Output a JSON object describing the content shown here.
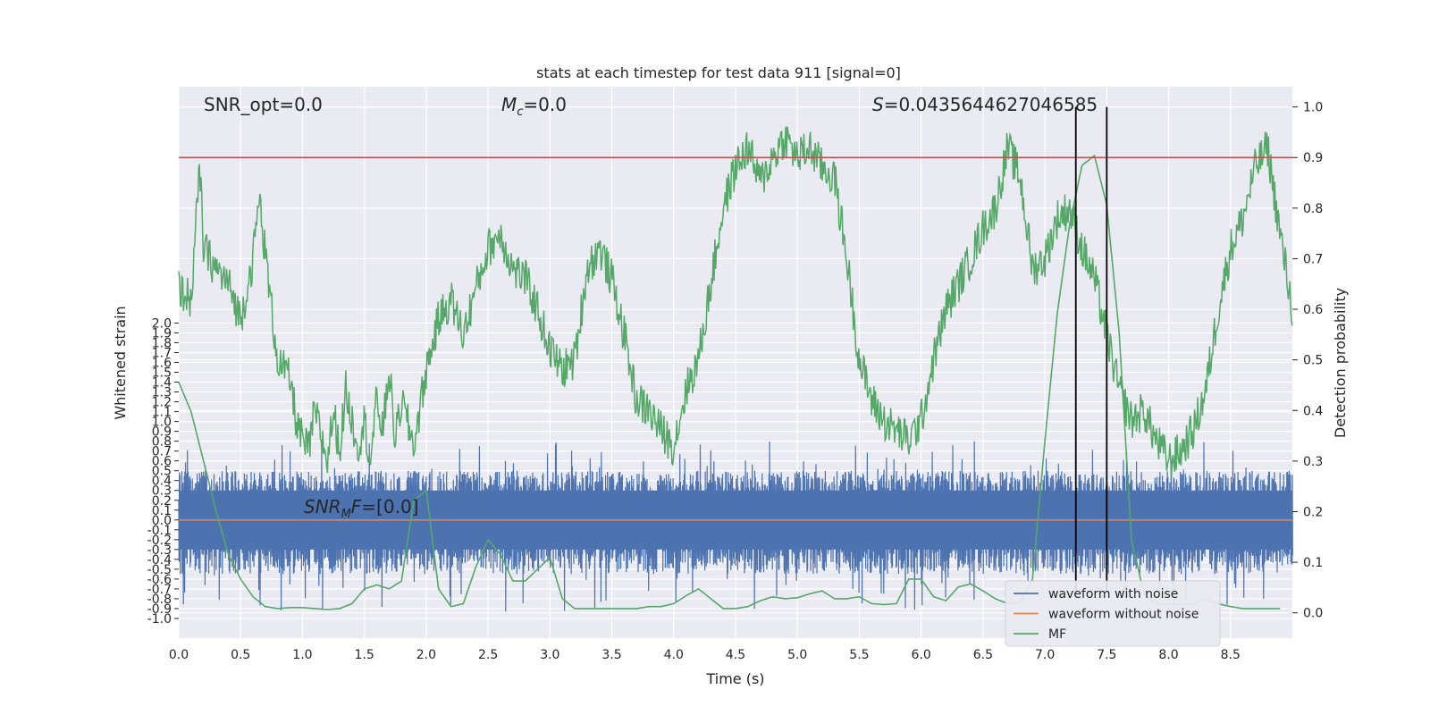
{
  "chart_data": {
    "type": "line",
    "title": "stats at each timestep for test data 911 [signal=0]",
    "xlabel": "Time (s)",
    "ylabel": "Whitened strain",
    "y2label": "Detection probability",
    "xlim": [
      0.0,
      9.0
    ],
    "ylim": [
      -1.2,
      4.4
    ],
    "y2lim": [
      -0.05,
      1.04
    ],
    "x_ticks": [
      "0.0",
      "0.5",
      "1.0",
      "1.5",
      "2.0",
      "2.5",
      "3.0",
      "3.5",
      "4.0",
      "4.5",
      "5.0",
      "5.5",
      "6.0",
      "6.5",
      "7.0",
      "7.5",
      "8.0",
      "8.5"
    ],
    "y_ticks": [
      "2.0",
      "1.9",
      "1.8",
      "1.7",
      "1.6",
      "1.5",
      "1.4",
      "1.3",
      "1.2",
      "1.1",
      "1.0",
      "0.9",
      "0.8",
      "0.7",
      "0.6",
      "0.5",
      "0.4",
      "0.3",
      "0.2",
      "0.1",
      "0.0",
      "-0.1",
      "-0.2",
      "-0.3",
      "-0.4",
      "-0.5",
      "-0.6",
      "-0.7",
      "-0.8",
      "-0.9",
      "-1.0"
    ],
    "y2_ticks": [
      "0.0",
      "0.1",
      "0.2",
      "0.3",
      "0.4",
      "0.5",
      "0.6",
      "0.7",
      "0.8",
      "0.9",
      "1.0"
    ],
    "grid": true,
    "legend_position": "lower-right",
    "annotations": {
      "snr_opt": "SNR_opt=0.0",
      "mc": "=0.0",
      "s_value": "=0.0435644627046585",
      "snr_mf": "=[0.0]"
    },
    "threshold": 0.9,
    "vlines": [
      7.25,
      7.5
    ],
    "colors": {
      "noise": "#4c72b0",
      "clean": "#dd8452",
      "mf": "#55a868",
      "prob": "#55a868",
      "threshold": "#c44e52",
      "vline": "#000000",
      "axes_bg": "#eaeaf2"
    },
    "series": [
      {
        "name": "waveform with noise",
        "axis": "left",
        "amplitude_envelope": [
          0.5,
          -0.55
        ]
      },
      {
        "name": "waveform without noise",
        "axis": "left",
        "values_constant": 0.0
      },
      {
        "name": "MF",
        "axis": "left",
        "x": [
          0.0,
          0.1,
          0.2,
          0.3,
          0.4,
          0.5,
          0.6,
          0.7,
          0.8,
          0.9,
          1.0,
          1.1,
          1.2,
          1.3,
          1.4,
          1.5,
          1.6,
          1.7,
          1.8,
          1.9,
          2.0,
          2.1,
          2.2,
          2.3,
          2.4,
          2.5,
          2.6,
          2.7,
          2.8,
          2.9,
          3.0,
          3.1,
          3.2,
          3.3,
          3.4,
          3.5,
          3.6,
          3.7,
          3.8,
          3.9,
          4.0,
          4.1,
          4.2,
          4.3,
          4.4,
          4.5,
          4.6,
          4.7,
          4.8,
          4.9,
          5.0,
          5.1,
          5.2,
          5.3,
          5.4,
          5.5,
          5.6,
          5.7,
          5.8,
          5.9,
          6.0,
          6.1,
          6.2,
          6.3,
          6.4,
          6.5,
          6.6,
          6.7,
          6.8,
          6.9,
          7.0,
          7.1,
          7.2,
          7.3,
          7.4,
          7.5,
          7.6,
          7.7,
          7.8,
          7.9,
          8.0,
          8.1,
          8.2,
          8.3,
          8.4,
          8.5,
          8.6,
          8.7,
          8.8,
          8.9
        ],
        "values": [
          1.4,
          1.1,
          0.6,
          0.1,
          -0.35,
          -0.6,
          -0.78,
          -0.88,
          -0.9,
          -0.89,
          -0.89,
          -0.9,
          -0.91,
          -0.9,
          -0.85,
          -0.7,
          -0.66,
          -0.7,
          -0.62,
          0.2,
          0.3,
          -0.7,
          -0.88,
          -0.85,
          -0.48,
          -0.2,
          -0.35,
          -0.62,
          -0.62,
          -0.5,
          -0.38,
          -0.8,
          -0.9,
          -0.9,
          -0.9,
          -0.9,
          -0.9,
          -0.9,
          -0.88,
          -0.88,
          -0.85,
          -0.77,
          -0.7,
          -0.8,
          -0.9,
          -0.9,
          -0.88,
          -0.82,
          -0.78,
          -0.8,
          -0.79,
          -0.75,
          -0.72,
          -0.8,
          -0.8,
          -0.78,
          -0.85,
          -0.86,
          -0.85,
          -0.6,
          -0.6,
          -0.78,
          -0.82,
          -0.68,
          -0.65,
          -0.72,
          -0.8,
          -0.85,
          -0.84,
          -0.6,
          0.8,
          2.1,
          3.0,
          3.6,
          3.7,
          3.2,
          1.9,
          -0.2,
          -0.75,
          -0.85,
          -0.86,
          -0.85,
          -0.86,
          -0.8,
          -0.85,
          -0.88,
          -0.9,
          -0.9,
          -0.9,
          -0.9
        ]
      },
      {
        "name": "Detection probability",
        "axis": "right",
        "x": [
          0.0,
          0.1,
          0.17,
          0.2,
          0.3,
          0.4,
          0.5,
          0.6,
          0.65,
          0.75,
          0.8,
          0.9,
          0.95,
          1.0,
          1.05,
          1.1,
          1.15,
          1.2,
          1.25,
          1.3,
          1.35,
          1.4,
          1.45,
          1.5,
          1.55,
          1.6,
          1.65,
          1.7,
          1.75,
          1.8,
          1.9,
          2.0,
          2.1,
          2.2,
          2.3,
          2.4,
          2.5,
          2.6,
          2.7,
          2.8,
          2.9,
          3.0,
          3.1,
          3.2,
          3.3,
          3.4,
          3.5,
          3.6,
          3.7,
          3.8,
          3.9,
          4.0,
          4.1,
          4.2,
          4.3,
          4.4,
          4.5,
          4.6,
          4.7,
          4.8,
          4.9,
          5.0,
          5.1,
          5.2,
          5.3,
          5.4,
          5.5,
          5.6,
          5.7,
          5.8,
          5.9,
          6.0,
          6.1,
          6.2,
          6.3,
          6.4,
          6.5,
          6.6,
          6.7,
          6.8,
          6.9,
          7.0,
          7.1,
          7.2,
          7.3,
          7.4,
          7.5,
          7.6,
          7.7,
          7.8,
          7.9,
          8.0,
          8.1,
          8.2,
          8.3,
          8.4,
          8.5,
          8.6,
          8.7,
          8.8,
          8.9,
          9.0
        ],
        "values": [
          0.64,
          0.62,
          0.88,
          0.72,
          0.68,
          0.65,
          0.58,
          0.7,
          0.82,
          0.6,
          0.5,
          0.46,
          0.38,
          0.34,
          0.32,
          0.4,
          0.35,
          0.3,
          0.4,
          0.32,
          0.44,
          0.38,
          0.33,
          0.38,
          0.3,
          0.42,
          0.36,
          0.48,
          0.34,
          0.42,
          0.33,
          0.48,
          0.58,
          0.62,
          0.55,
          0.64,
          0.72,
          0.75,
          0.68,
          0.66,
          0.6,
          0.52,
          0.48,
          0.5,
          0.68,
          0.72,
          0.66,
          0.55,
          0.42,
          0.4,
          0.36,
          0.33,
          0.44,
          0.5,
          0.65,
          0.8,
          0.88,
          0.92,
          0.85,
          0.9,
          0.94,
          0.9,
          0.92,
          0.88,
          0.86,
          0.7,
          0.5,
          0.42,
          0.38,
          0.36,
          0.34,
          0.38,
          0.5,
          0.6,
          0.65,
          0.7,
          0.76,
          0.8,
          0.92,
          0.86,
          0.68,
          0.7,
          0.78,
          0.8,
          0.72,
          0.66,
          0.55,
          0.44,
          0.38,
          0.4,
          0.34,
          0.3,
          0.32,
          0.36,
          0.44,
          0.6,
          0.72,
          0.78,
          0.88,
          0.92,
          0.75,
          0.6
        ]
      }
    ]
  }
}
